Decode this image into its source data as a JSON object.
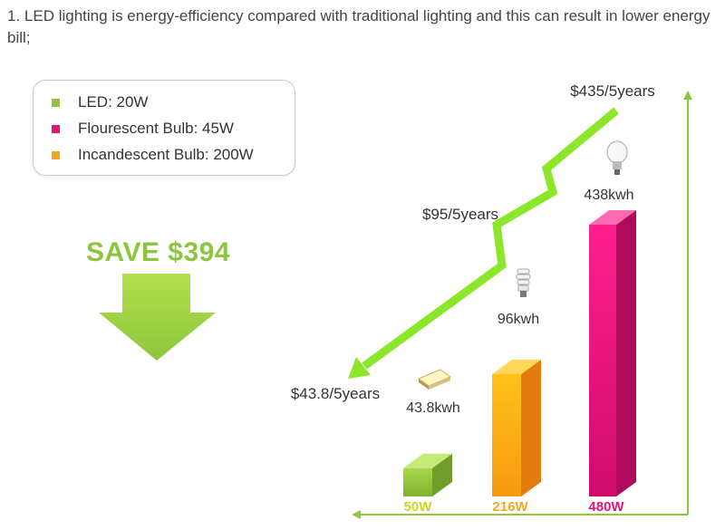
{
  "intro_text": "1. LED lighting is energy-efficiency compared with traditional lighting and this can result in lower energy bill;",
  "legend": {
    "items": [
      {
        "label": "LED: 20W",
        "color": "#8cc63f"
      },
      {
        "label": "Flourescent Bulb: 45W",
        "color": "#e0167a"
      },
      {
        "label": "Incandescent Bulb: 200W",
        "color": "#f5a623"
      }
    ]
  },
  "save_label": "SAVE $394",
  "icons": [
    "led-strip-icon",
    "cfl-bulb-icon",
    "incandescent-bulb-icon",
    "down-arrow-icon"
  ],
  "chart_data": {
    "type": "bar",
    "categories": [
      "50W",
      "216W",
      "480W"
    ],
    "values": [
      50,
      216,
      480
    ],
    "energy_labels": [
      "43.8kwh",
      "96kwh",
      "438kwh"
    ],
    "cost_labels": [
      "$43.8/5years",
      "$95/5years",
      "$435/5years"
    ],
    "bar_colors": [
      "#8cc63f",
      "#f5a623",
      "#e0167a"
    ],
    "category_label_colors": [
      "#c8d820",
      "#f5a623",
      "#e0167a"
    ],
    "trend_color": "#8ce62a",
    "axis_color": "#8cc63f"
  }
}
